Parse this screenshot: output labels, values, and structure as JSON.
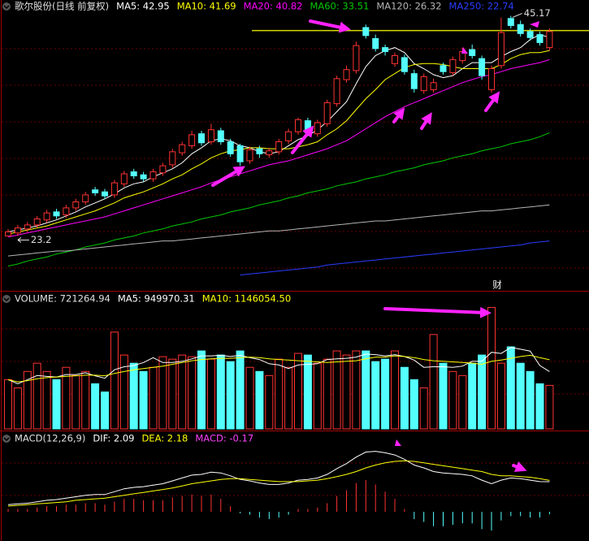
{
  "chart_data": [
    {
      "type": "candlestick",
      "title": "歌尔股份(日线 前复权)",
      "up_color": "#ff3232",
      "down_color": "#54ffff",
      "ylim": [
        17.4,
        46.1
      ],
      "open": [
        23.2,
        23.5,
        23.9,
        24.3,
        24.8,
        25.6,
        25.3,
        26.0,
        26.6,
        27.8,
        27.6,
        27.3,
        28.4,
        29.6,
        29.3,
        28.9,
        29.5,
        30.3,
        31.5,
        32.2,
        33.4,
        32.6,
        33.7,
        32.6,
        32.2,
        30.7,
        31.9,
        31.3,
        31.6,
        32.7,
        33.6,
        34.7,
        33.4,
        34.4,
        36.4,
        38.8,
        39.7,
        44.0,
        42.9,
        42.0,
        40.4,
        41.0,
        39.4,
        37.7,
        37.8,
        40.2,
        39.5,
        40.7,
        41.8,
        40.9,
        37.8,
        40.2,
        44.9,
        44.3,
        43.6,
        43.3,
        42.0
      ],
      "high": [
        23.9,
        24.3,
        24.6,
        25.2,
        25.8,
        25.9,
        26.3,
        26.9,
        27.6,
        28.1,
        27.9,
        28.8,
        29.7,
        29.9,
        29.6,
        29.9,
        30.5,
        31.9,
        32.6,
        33.7,
        33.7,
        34.4,
        34.0,
        32.9,
        32.4,
        32.1,
        32.2,
        32.0,
        32.9,
        33.9,
        35.0,
        35.0,
        34.8,
        36.8,
        39.2,
        40.2,
        42.6,
        44.3,
        43.3,
        42.3,
        41.5,
        41.3,
        39.8,
        39.4,
        38.9,
        40.5,
        41.1,
        42.0,
        42.3,
        41.2,
        40.2,
        45.0,
        45.17,
        44.7,
        43.9,
        43.6,
        43.9
      ],
      "low": [
        23.25,
        23.2,
        23.6,
        24.0,
        24.5,
        24.9,
        25.0,
        25.7,
        26.3,
        27.2,
        26.9,
        27.0,
        28.1,
        28.9,
        28.6,
        28.6,
        29.2,
        30.0,
        31.2,
        31.9,
        32.2,
        32.3,
        32.3,
        31.1,
        30.2,
        30.4,
        31.0,
        31.0,
        31.3,
        32.4,
        33.3,
        33.2,
        33.1,
        34.1,
        36.1,
        38.5,
        39.4,
        42.9,
        41.6,
        41.2,
        40.1,
        39.3,
        37.5,
        37.4,
        37.5,
        39.3,
        39.2,
        40.4,
        40.9,
        38.8,
        37.5,
        39.9,
        43.9,
        43.1,
        42.7,
        42.2,
        41.7
      ],
      "close": [
        23.6,
        24.0,
        24.3,
        24.9,
        25.5,
        25.2,
        26.0,
        26.6,
        27.3,
        27.5,
        27.2,
        28.5,
        29.4,
        29.2,
        28.9,
        29.6,
        30.2,
        31.6,
        32.3,
        33.3,
        32.5,
        33.8,
        32.6,
        31.4,
        30.6,
        31.8,
        31.4,
        31.7,
        32.6,
        33.6,
        34.8,
        33.5,
        34.5,
        36.5,
        38.9,
        39.8,
        42.2,
        43.2,
        41.9,
        41.6,
        41.2,
        39.6,
        37.9,
        39.1,
        38.5,
        39.6,
        40.8,
        41.6,
        41.2,
        39.2,
        39.9,
        43.5,
        44.2,
        43.4,
        43.0,
        42.5,
        43.6
      ],
      "series": [
        {
          "name": "MA5: 42.95",
          "color": "#ffffff",
          "values": [
            23.6,
            23.8,
            24.0,
            24.2,
            24.5,
            24.8,
            25.2,
            25.6,
            26.1,
            26.5,
            26.9,
            27.4,
            28.0,
            28.4,
            28.6,
            29.1,
            29.5,
            29.9,
            30.5,
            31.4,
            32.0,
            32.7,
            32.9,
            32.7,
            32.2,
            32.0,
            31.6,
            31.4,
            31.6,
            32.2,
            32.8,
            33.2,
            33.8,
            34.6,
            35.6,
            36.6,
            38.4,
            40.1,
            41.2,
            41.7,
            42.0,
            41.5,
            40.4,
            39.9,
            39.3,
            39.0,
            39.2,
            39.9,
            40.5,
            40.5,
            40.5,
            41.1,
            41.6,
            42.0,
            42.8,
            43.3,
            43.0
          ]
        },
        {
          "name": "MA10: 41.69",
          "color": "#ffff00",
          "values": [
            23.4,
            23.6,
            23.8,
            24.0,
            24.2,
            24.5,
            24.8,
            25.1,
            25.4,
            25.7,
            26.1,
            26.5,
            27.0,
            27.3,
            27.6,
            28.0,
            28.4,
            28.9,
            29.3,
            29.9,
            30.4,
            31.0,
            31.4,
            31.7,
            31.8,
            32.0,
            32.0,
            31.9,
            31.9,
            31.9,
            32.1,
            32.3,
            32.6,
            33.3,
            33.9,
            34.7,
            35.8,
            36.9,
            37.8,
            38.8,
            39.4,
            40.0,
            40.3,
            40.4,
            40.4,
            40.3,
            40.1,
            39.9,
            39.9,
            39.9,
            39.9,
            40.3,
            40.9,
            41.3,
            41.5,
            41.5,
            41.7
          ]
        },
        {
          "name": "MA20: 40.82",
          "color": "#ff00ff",
          "values": [
            23.1,
            23.3,
            23.5,
            23.7,
            23.9,
            24.1,
            24.3,
            24.5,
            24.7,
            24.9,
            25.1,
            25.4,
            25.7,
            26.0,
            26.3,
            26.6,
            26.9,
            27.2,
            27.5,
            27.8,
            28.1,
            28.5,
            28.8,
            29.1,
            29.4,
            29.7,
            30.0,
            30.3,
            30.5,
            30.7,
            31.0,
            31.3,
            31.6,
            31.9,
            32.3,
            32.7,
            33.3,
            33.9,
            34.5,
            35.1,
            35.6,
            36.1,
            36.5,
            36.9,
            37.3,
            37.7,
            38.1,
            38.5,
            38.8,
            39.1,
            39.3,
            39.6,
            39.9,
            40.1,
            40.3,
            40.5,
            40.8
          ]
        },
        {
          "name": "MA60: 33.51",
          "color": "#00c800",
          "values": [
            20.2,
            20.4,
            20.7,
            20.9,
            21.1,
            21.4,
            21.6,
            21.8,
            22.1,
            22.3,
            22.5,
            22.8,
            23.0,
            23.2,
            23.5,
            23.7,
            23.9,
            24.2,
            24.4,
            24.6,
            24.9,
            25.1,
            25.3,
            25.6,
            25.8,
            26.0,
            26.3,
            26.5,
            26.7,
            27.0,
            27.2,
            27.5,
            27.7,
            27.9,
            28.2,
            28.4,
            28.6,
            28.9,
            29.1,
            29.3,
            29.6,
            29.8,
            30.0,
            30.3,
            30.5,
            30.7,
            31.0,
            31.2,
            31.4,
            31.7,
            31.9,
            32.1,
            32.4,
            32.6,
            32.8,
            33.1,
            33.5
          ]
        },
        {
          "name": "MA120: 26.32",
          "color": "#b4b4b4",
          "values": [
            21.2,
            21.3,
            21.4,
            21.5,
            21.6,
            21.7,
            21.7,
            21.8,
            21.9,
            22.0,
            22.1,
            22.2,
            22.3,
            22.4,
            22.5,
            22.6,
            22.7,
            22.7,
            22.8,
            22.9,
            23.0,
            23.1,
            23.2,
            23.3,
            23.4,
            23.5,
            23.6,
            23.7,
            23.7,
            23.8,
            23.9,
            24.0,
            24.1,
            24.2,
            24.3,
            24.4,
            24.5,
            24.6,
            24.7,
            24.7,
            24.8,
            24.9,
            25.0,
            25.1,
            25.2,
            25.3,
            25.4,
            25.5,
            25.6,
            25.7,
            25.7,
            25.8,
            25.9,
            26.0,
            26.1,
            26.2,
            26.3
          ]
        },
        {
          "name": "MA250: 22.74",
          "color": "#2a3cff",
          "values": [
            null,
            null,
            null,
            null,
            null,
            null,
            null,
            null,
            null,
            null,
            null,
            null,
            null,
            null,
            null,
            null,
            null,
            null,
            null,
            null,
            null,
            null,
            null,
            null,
            19.3,
            19.4,
            19.5,
            19.6,
            19.7,
            19.8,
            19.9,
            20.0,
            20.1,
            20.3,
            20.4,
            20.5,
            20.6,
            20.7,
            20.8,
            20.9,
            21.0,
            21.1,
            21.2,
            21.3,
            21.4,
            21.5,
            21.6,
            21.7,
            21.8,
            21.9,
            22.0,
            22.1,
            22.2,
            22.3,
            22.5,
            22.6,
            22.7
          ]
        }
      ],
      "level_line": {
        "value": 43.7,
        "color": "#d8d800"
      },
      "marker_text": "财"
    },
    {
      "type": "volume",
      "title": "VOLUME: 721264.94",
      "up_color": "#ff3232",
      "down_color": "#54ffff",
      "ylim": [
        0,
        2100000
      ],
      "values": [
        816000,
        680000,
        952000,
        1088000,
        952000,
        816000,
        1020000,
        884000,
        952000,
        748000,
        612000,
        1604800,
        1224000,
        1088000,
        952000,
        1020000,
        1196800,
        1156000,
        1224000,
        1196800,
        1292000,
        1156000,
        1224000,
        1115200,
        1292000,
        1020000,
        952000,
        884000,
        1156000,
        1020000,
        1251200,
        1224000,
        1088000,
        1156000,
        1292000,
        1224000,
        1292000,
        1292000,
        1115200,
        1156000,
        1292000,
        1020000,
        816000,
        680000,
        1564000,
        1088000,
        952000,
        884000,
        1088000,
        1224000,
        2012800,
        1088000,
        1360000,
        1088000,
        952000,
        748000,
        721264.94
      ],
      "series": [
        {
          "name": "MA5: 949970.31",
          "color": "#ffffff",
          "values": [
            816000,
            748000,
            816000,
            884000,
            870000,
            860000,
            900000,
            900000,
            930000,
            880000,
            840000,
            980000,
            1030000,
            1050000,
            1100000,
            1180000,
            1100000,
            1100000,
            1120000,
            1160000,
            1210000,
            1210000,
            1220000,
            1200000,
            1220000,
            1180000,
            1150000,
            1080000,
            1060000,
            1000000,
            1060000,
            1070000,
            1080000,
            1150000,
            1160000,
            1170000,
            1190000,
            1240000,
            1230000,
            1210000,
            1230000,
            1200000,
            1140000,
            1020000,
            1030000,
            1030000,
            1020000,
            1040000,
            1120000,
            1120000,
            1270000,
            1250000,
            1350000,
            1320000,
            1290000,
            1050000,
            949970.31
          ]
        },
        {
          "name": "MA10: 1146054.50",
          "color": "#ffff00",
          "values": [
            816000,
            780000,
            800000,
            830000,
            850000,
            860000,
            870000,
            880000,
            890000,
            890000,
            880000,
            920000,
            950000,
            980000,
            1000000,
            1020000,
            1040000,
            1070000,
            1100000,
            1130000,
            1150000,
            1160000,
            1170000,
            1170000,
            1180000,
            1190000,
            1180000,
            1160000,
            1150000,
            1140000,
            1130000,
            1120000,
            1110000,
            1100000,
            1110000,
            1120000,
            1130000,
            1160000,
            1190000,
            1190000,
            1210000,
            1200000,
            1180000,
            1150000,
            1130000,
            1120000,
            1110000,
            1100000,
            1090000,
            1070000,
            1120000,
            1140000,
            1170000,
            1200000,
            1220000,
            1180000,
            1146054.5
          ]
        }
      ]
    },
    {
      "type": "macd",
      "title": "MACD(12,26,9)",
      "up_color": "#ff3232",
      "down_color": "#54ffff",
      "ylim": [
        -1.8,
        4.8
      ],
      "series": [
        {
          "name": "DIF: 2.09",
          "color": "#ffffff",
          "values": [
            0.5,
            0.55,
            0.6,
            0.7,
            0.8,
            0.85,
            0.95,
            1.05,
            1.15,
            1.2,
            1.2,
            1.4,
            1.6,
            1.7,
            1.75,
            1.85,
            1.95,
            2.15,
            2.35,
            2.55,
            2.6,
            2.75,
            2.7,
            2.5,
            2.25,
            2.15,
            2.0,
            1.9,
            1.9,
            2.0,
            2.2,
            2.25,
            2.35,
            2.6,
            3.0,
            3.35,
            3.8,
            4.15,
            4.2,
            4.1,
            3.95,
            3.65,
            3.25,
            3.05,
            2.8,
            2.7,
            2.65,
            2.6,
            2.5,
            2.2,
            1.95,
            2.2,
            2.35,
            2.3,
            2.2,
            2.1,
            2.09
          ]
        },
        {
          "name": "DEA: 2.18",
          "color": "#ffff00",
          "values": [
            0.4,
            0.45,
            0.5,
            0.55,
            0.6,
            0.65,
            0.7,
            0.8,
            0.85,
            0.9,
            0.95,
            1.05,
            1.15,
            1.25,
            1.35,
            1.45,
            1.55,
            1.65,
            1.8,
            1.95,
            2.05,
            2.15,
            2.25,
            2.3,
            2.3,
            2.25,
            2.2,
            2.15,
            2.1,
            2.1,
            2.1,
            2.15,
            2.2,
            2.3,
            2.45,
            2.6,
            2.8,
            3.05,
            3.25,
            3.4,
            3.5,
            3.55,
            3.5,
            3.4,
            3.3,
            3.2,
            3.1,
            3.0,
            2.9,
            2.8,
            2.6,
            2.5,
            2.5,
            2.45,
            2.4,
            2.3,
            2.18
          ]
        }
      ],
      "histogram": {
        "name": "MACD: -0.17",
        "color": "#ff40ff",
        "values": [
          0.2,
          0.2,
          0.2,
          0.3,
          0.4,
          0.4,
          0.5,
          0.5,
          0.6,
          0.6,
          0.5,
          0.7,
          0.9,
          0.9,
          0.8,
          0.8,
          0.8,
          1.0,
          1.1,
          1.2,
          1.1,
          1.2,
          0.9,
          0.4,
          -0.1,
          -0.2,
          -0.4,
          -0.5,
          -0.4,
          -0.2,
          0.2,
          0.2,
          0.3,
          0.6,
          1.1,
          1.5,
          2.0,
          2.2,
          1.9,
          1.4,
          0.9,
          0.2,
          -0.5,
          -0.7,
          -1.0,
          -1.0,
          -0.9,
          -0.8,
          -0.8,
          -1.2,
          -1.3,
          -0.6,
          -0.3,
          -0.3,
          -0.4,
          -0.4,
          -0.17
        ]
      }
    }
  ]
}
